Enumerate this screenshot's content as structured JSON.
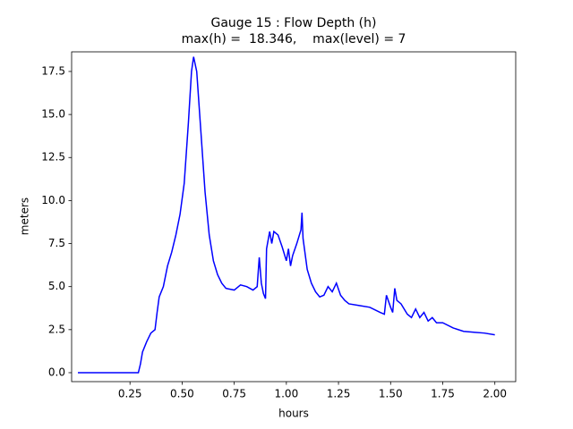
{
  "chart_data": {
    "type": "line",
    "title": "Gauge 15 : Flow Depth (h)",
    "subtitle": "max(h) =  18.346,    max(level) = 7",
    "x_label": "hours",
    "y_label": "meters",
    "xlim": [
      -0.03,
      2.1
    ],
    "ylim": [
      -0.52,
      18.64
    ],
    "xticks": [
      0.25,
      {
        "value": 0.5,
        "label": "0.50"
      },
      0.75,
      {
        "value": 1,
        "label": "1.00"
      },
      1.25,
      {
        "value": 1.5,
        "label": "1.50"
      },
      1.75,
      {
        "value": 2,
        "label": "2.00"
      }
    ],
    "yticks": [
      {
        "value": 0,
        "label": "0.0"
      },
      2.5,
      {
        "value": 5,
        "label": "5.0"
      },
      7.5,
      {
        "value": 10,
        "label": "10.0"
      },
      12.5,
      {
        "value": 15,
        "label": "15.0"
      },
      17.5
    ],
    "grid": false,
    "series": [
      {
        "name": "h",
        "color": "#0000ff",
        "x": [
          0,
          0.29,
          0.3,
          0.31,
          0.33,
          0.35,
          0.37,
          0.38,
          0.39,
          0.41,
          0.43,
          0.45,
          0.47,
          0.49,
          0.51,
          0.53,
          0.545,
          0.555,
          0.57,
          0.59,
          0.61,
          0.63,
          0.65,
          0.67,
          0.69,
          0.71,
          0.75,
          0.78,
          0.81,
          0.84,
          0.86,
          0.87,
          0.88,
          0.89,
          0.9,
          0.905,
          0.92,
          0.93,
          0.94,
          0.96,
          0.98,
          1.0,
          1.01,
          1.02,
          1.03,
          1.05,
          1.07,
          1.075,
          1.08,
          1.1,
          1.12,
          1.14,
          1.16,
          1.18,
          1.2,
          1.22,
          1.24,
          1.26,
          1.28,
          1.3,
          1.35,
          1.4,
          1.45,
          1.47,
          1.48,
          1.5,
          1.51,
          1.52,
          1.53,
          1.55,
          1.58,
          1.6,
          1.62,
          1.64,
          1.66,
          1.68,
          1.7,
          1.72,
          1.75,
          1.8,
          1.85,
          1.9,
          1.95,
          2.0
        ],
        "values": [
          0,
          0,
          0.5,
          1.2,
          1.8,
          2.3,
          2.5,
          3.5,
          4.4,
          5.0,
          6.2,
          7.0,
          8.0,
          9.2,
          11,
          14.5,
          17.5,
          18.35,
          17.5,
          14,
          10.5,
          8,
          6.5,
          5.7,
          5.2,
          4.9,
          4.8,
          5.1,
          5.0,
          4.8,
          5.0,
          6.7,
          5.2,
          4.6,
          4.3,
          7.2,
          8.2,
          7.5,
          8.2,
          8.0,
          7.3,
          6.5,
          7.2,
          6.2,
          6.8,
          7.5,
          8.3,
          9.3,
          7.8,
          6.0,
          5.2,
          4.7,
          4.4,
          4.5,
          5.0,
          4.7,
          5.2,
          4.5,
          4.2,
          4.0,
          3.9,
          3.8,
          3.5,
          3.4,
          4.5,
          3.8,
          3.5,
          4.9,
          4.2,
          4.0,
          3.4,
          3.2,
          3.7,
          3.2,
          3.5,
          3.0,
          3.2,
          2.9,
          2.9,
          2.6,
          2.4,
          2.35,
          2.3,
          2.2
        ]
      }
    ]
  }
}
